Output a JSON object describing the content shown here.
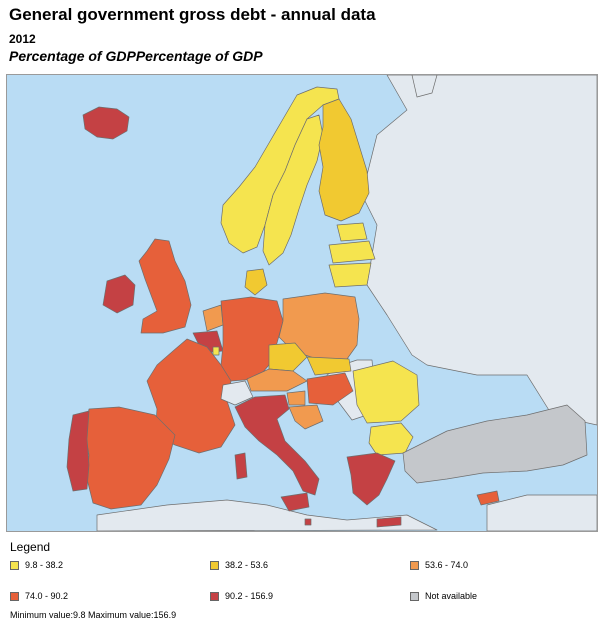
{
  "title": "General government gross debt - annual data",
  "year": "2012",
  "unit": "Percentage of GDPPercentage of GDP",
  "legend": {
    "title": "Legend",
    "classes": [
      {
        "label": "9.8 - 38.2",
        "color": "#f5e44f"
      },
      {
        "label": "38.2 - 53.6",
        "color": "#f1c931"
      },
      {
        "label": "53.6 - 74.0",
        "color": "#f19a4f"
      },
      {
        "label": "74.0 - 90.2",
        "color": "#e6603a"
      },
      {
        "label": "90.2 - 156.9",
        "color": "#c44144"
      },
      {
        "label": "Not available",
        "color": "#c4c7cb"
      }
    ],
    "minmax": "Minimum value:9.8 Maximum value:156.9"
  },
  "colors": {
    "sea": "#b9dcf4",
    "non_member": "#e3e9ef",
    "border": "#6e6e6e"
  }
}
